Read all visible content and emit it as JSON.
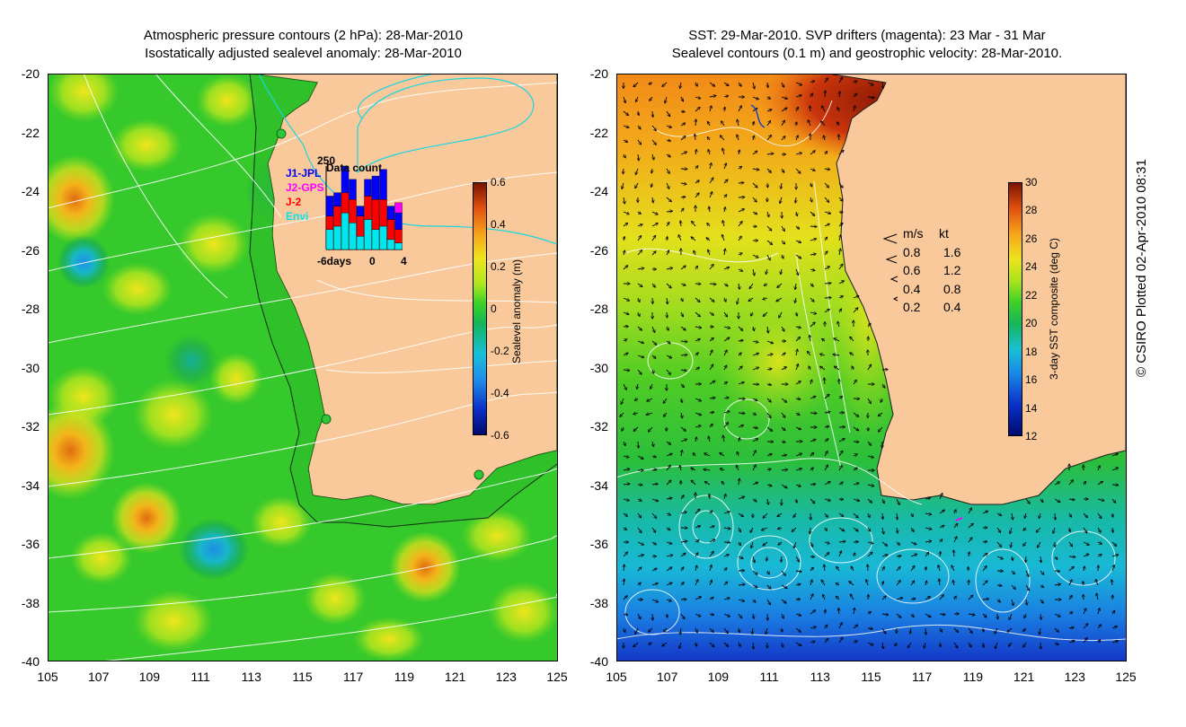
{
  "left_panel": {
    "title_line1": "Atmospheric pressure contours (2 hPa): 28-Mar-2010",
    "title_line2": "Isostatically adjusted sealevel anomaly: 28-Mar-2010",
    "colorbar_label": "Sealevel anomaly (m)",
    "colorbar_ticks": [
      "0.6",
      "0.4",
      "0.2",
      "0",
      "-0.2",
      "-0.4",
      "-0.6"
    ],
    "colorbar_range": [
      -0.6,
      0.6
    ]
  },
  "right_panel": {
    "title_line1": "SST: 29-Mar-2010. SVP drifters (magenta): 23 Mar - 31 Mar",
    "title_line2": "Sealevel contours (0.1 m) and geostrophic velocity: 28-Mar-2010.",
    "colorbar_label": "3-day SST composite (deg C)",
    "colorbar_ticks": [
      "30",
      "28",
      "26",
      "24",
      "22",
      "20",
      "18",
      "16",
      "14",
      "12"
    ],
    "colorbar_range": [
      12,
      30
    ]
  },
  "axes": {
    "y_ticks": [
      "-20",
      "-22",
      "-24",
      "-26",
      "-28",
      "-30",
      "-32",
      "-34",
      "-36",
      "-38",
      "-40"
    ],
    "x_ticks": [
      "105",
      "107",
      "109",
      "111",
      "113",
      "115",
      "117",
      "119",
      "121",
      "123",
      "125"
    ],
    "lat_range": [
      -40,
      -20
    ],
    "lon_range": [
      105,
      125
    ]
  },
  "data_count_inset": {
    "title": "Data count",
    "y_max_label": "250",
    "x_labels": [
      "-6days",
      "0",
      "4"
    ],
    "satellites": [
      {
        "name": "J1-JPL",
        "color": "#0000ff"
      },
      {
        "name": "J2-GPS",
        "color": "#ff00ff"
      },
      {
        "name": "J-2",
        "color": "#ff0000"
      },
      {
        "name": "Envi",
        "color": "#00e5ee"
      }
    ],
    "bars": [
      {
        "day": -6,
        "envi": 60,
        "j2": 40,
        "j1": 60,
        "j2gps": 0
      },
      {
        "day": -5,
        "envi": 70,
        "j2": 60,
        "j1": 40,
        "j2gps": 0
      },
      {
        "day": -4,
        "envi": 110,
        "j2": 60,
        "j1": 80,
        "j2gps": 0
      },
      {
        "day": -3,
        "envi": 80,
        "j2": 70,
        "j1": 60,
        "j2gps": 0
      },
      {
        "day": -2,
        "envi": 40,
        "j2": 60,
        "j1": 30,
        "j2gps": 0
      },
      {
        "day": -1,
        "envi": 90,
        "j2": 70,
        "j1": 50,
        "j2gps": 0
      },
      {
        "day": 0,
        "envi": 60,
        "j2": 90,
        "j1": 70,
        "j2gps": 0
      },
      {
        "day": 1,
        "envi": 70,
        "j2": 80,
        "j1": 90,
        "j2gps": 0
      },
      {
        "day": 2,
        "envi": 30,
        "j2": 60,
        "j1": 40,
        "j2gps": 0
      },
      {
        "day": 3,
        "envi": 20,
        "j2": 40,
        "j1": 50,
        "j2gps": 30
      }
    ]
  },
  "velocity_legend": {
    "header_ms": "m/s",
    "header_kt": "kt",
    "rows": [
      {
        "ms": "0.8",
        "kt": "1.6"
      },
      {
        "ms": "0.6",
        "kt": "1.2"
      },
      {
        "ms": "0.4",
        "kt": "0.8"
      },
      {
        "ms": "0.2",
        "kt": "0.4"
      }
    ]
  },
  "copyright": "© CSIRO Plotted 02-Apr-2010 08:31",
  "colors": {
    "land": "#f9c99b",
    "ocean_sla_base": "#35c92b",
    "contour": "#ffffff",
    "frame": "#000000"
  }
}
